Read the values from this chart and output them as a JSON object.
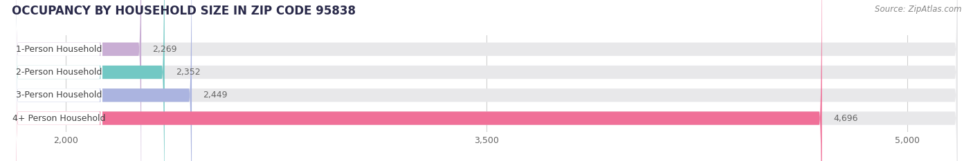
{
  "title": "OCCUPANCY BY HOUSEHOLD SIZE IN ZIP CODE 95838",
  "source": "Source: ZipAtlas.com",
  "categories": [
    "1-Person Household",
    "2-Person Household",
    "3-Person Household",
    "4+ Person Household"
  ],
  "values": [
    2269,
    2352,
    2449,
    4696
  ],
  "bar_colors": [
    "#c9aed4",
    "#72c8c4",
    "#abb4e0",
    "#f07098"
  ],
  "xlim_min": 1800,
  "xlim_max": 5200,
  "xticks": [
    2000,
    3500,
    5000
  ],
  "xtick_labels": [
    "2,000",
    "3,500",
    "5,000"
  ],
  "background_color": "#ffffff",
  "bar_bg_color": "#e8e8ea",
  "title_fontsize": 12,
  "source_fontsize": 8.5,
  "label_fontsize": 9,
  "value_fontsize": 9,
  "title_color": "#2a2a4a",
  "source_color": "#888888",
  "label_color": "#444444",
  "value_color": "#666666"
}
